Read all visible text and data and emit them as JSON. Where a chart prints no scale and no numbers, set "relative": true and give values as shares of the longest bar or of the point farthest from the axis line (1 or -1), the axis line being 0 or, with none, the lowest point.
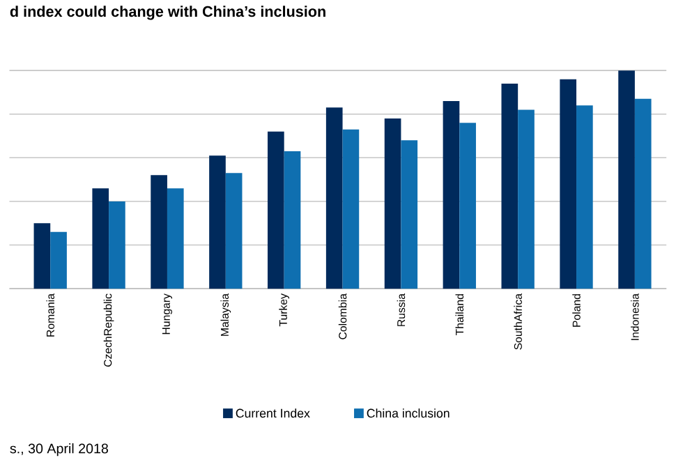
{
  "chart_data": {
    "type": "bar",
    "title": "d index could change with China’s inclusion",
    "categories": [
      "Romania",
      "CzechRepublic",
      "Hungary",
      "Malaysia",
      "Turkey",
      "Colombia",
      "Russia",
      "Thailand",
      "SouthAfrica",
      "Poland",
      "Indonesia"
    ],
    "relative": true,
    "grid": "y",
    "legend": "bottom",
    "series": [
      {
        "name": "Current Index",
        "color": "#002a5c",
        "values": [
          0.3,
          0.46,
          0.52,
          0.61,
          0.72,
          0.83,
          0.78,
          0.86,
          0.94,
          0.96,
          1
        ]
      },
      {
        "name": "China inclusion",
        "color": "#0f6fb0",
        "values": [
          0.26,
          0.4,
          0.46,
          0.53,
          0.63,
          0.73,
          0.68,
          0.76,
          0.82,
          0.84,
          0.87
        ]
      }
    ],
    "annotations": [
      "s., 30 April 2018"
    ]
  }
}
